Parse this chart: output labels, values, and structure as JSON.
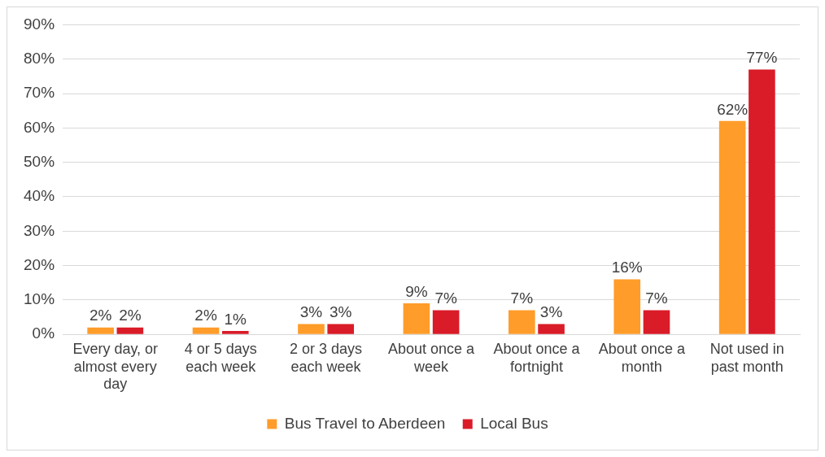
{
  "chart_data": {
    "type": "bar",
    "categories": [
      "Every day, or almost every day",
      "4 or 5 days each week",
      "2 or 3 days each week",
      "About once a week",
      "About once a fortnight",
      "About once a month",
      "Not used in past month"
    ],
    "series": [
      {
        "name": "Bus Travel to Aberdeen",
        "color": "#ff9c2a",
        "values": [
          2,
          2,
          3,
          9,
          7,
          16,
          62
        ],
        "value_labels": [
          "2%",
          "2%",
          "3%",
          "9%",
          "7%",
          "16%",
          "62%"
        ]
      },
      {
        "name": "Local Bus",
        "color": "#d91c28",
        "values": [
          2,
          1,
          3,
          7,
          3,
          7,
          77
        ],
        "value_labels": [
          "2%",
          "1%",
          "3%",
          "7%",
          "3%",
          "7%",
          "77%"
        ]
      }
    ],
    "ylim": [
      0,
      90
    ],
    "yticks": [
      {
        "value": 0,
        "label": "0%"
      },
      {
        "value": 10,
        "label": "10%"
      },
      {
        "value": 20,
        "label": "20%"
      },
      {
        "value": 30,
        "label": "30%"
      },
      {
        "value": 40,
        "label": "40%"
      },
      {
        "value": 50,
        "label": "50%"
      },
      {
        "value": 60,
        "label": "60%"
      },
      {
        "value": 70,
        "label": "70%"
      },
      {
        "value": 80,
        "label": "80%"
      },
      {
        "value": 90,
        "label": "90%"
      }
    ],
    "grid": "y",
    "legend": "bottom"
  }
}
